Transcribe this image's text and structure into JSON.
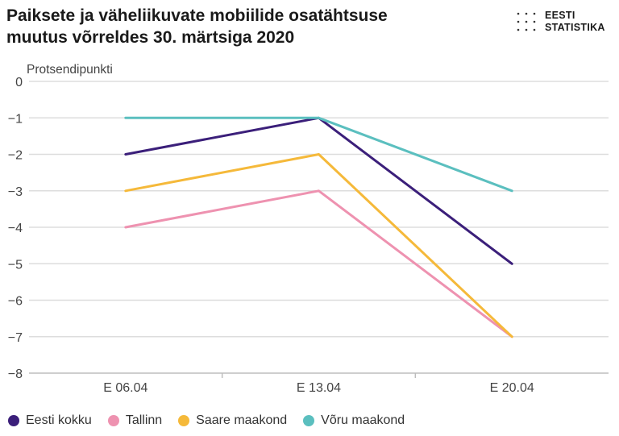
{
  "header": {
    "title": "Paiksete ja väheliikuvate mobiilide osatähtsuse\nmuutus võrreldes 30. märtsiga 2020"
  },
  "logo": {
    "text": "EESTI\nSTATISTIKA"
  },
  "chart_data": {
    "type": "line",
    "title": "Paiksete ja väheliikuvate mobiilide osatähtsuse muutus võrreldes 30. märtsiga 2020",
    "ylabel": "Protsendipunkti",
    "xlabel": "",
    "categories": [
      "E 06.04",
      "E 13.04",
      "E 20.04"
    ],
    "ylim": [
      -8,
      0
    ],
    "yticks": [
      0,
      -1,
      -2,
      -3,
      -4,
      -5,
      -6,
      -7,
      -8
    ],
    "ytick_labels": [
      "0",
      "−1",
      "−2",
      "−3",
      "−4",
      "−5",
      "−6",
      "−7",
      "−8"
    ],
    "grid": true,
    "legend_position": "bottom-left",
    "series": [
      {
        "name": "Eesti kokku",
        "color": "#3b1f7a",
        "values": [
          -2,
          -1,
          -5
        ]
      },
      {
        "name": "Tallinn",
        "color": "#ee92b0",
        "values": [
          -4,
          -3,
          -7
        ]
      },
      {
        "name": "Saare maakond",
        "color": "#f5b93a",
        "values": [
          -3,
          -2,
          -7
        ]
      },
      {
        "name": "Võru maakond",
        "color": "#5bbfbf",
        "values": [
          -1,
          -1,
          -3
        ]
      }
    ]
  }
}
